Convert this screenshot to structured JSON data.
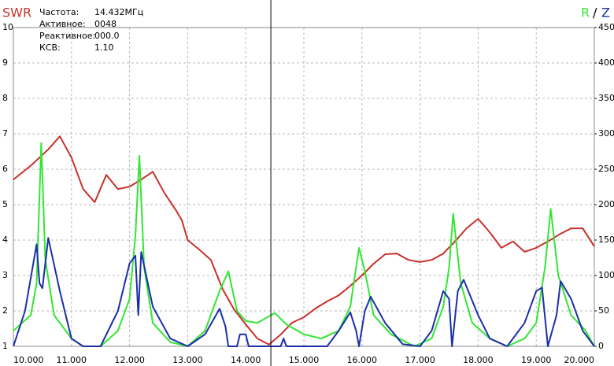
{
  "chart_data": {
    "type": "line",
    "info": [
      {
        "label": "Частота:",
        "value": "14.432МГц"
      },
      {
        "label": "Активное:",
        "value": "0048"
      },
      {
        "label": "Реактивное:",
        "value": "000.0"
      },
      {
        "label": "КСВ:",
        "value": "1.10"
      }
    ],
    "legend_separator": "/",
    "cursor": {
      "value": 14.432,
      "label": "14.432МГц"
    },
    "xlim": [
      10,
      20
    ],
    "xticks": [
      {
        "value": 10,
        "label": "10.000"
      },
      {
        "value": 11,
        "label": "11.000"
      },
      {
        "value": 12,
        "label": "12.000"
      },
      {
        "value": 13,
        "label": "13.000"
      },
      {
        "value": 14,
        "label": "14.000"
      },
      {
        "value": 15,
        "label": "15.000"
      },
      {
        "value": 16,
        "label": "16.000"
      },
      {
        "value": 17,
        "label": "17.000"
      },
      {
        "value": 18,
        "label": "18.000"
      },
      {
        "value": 19,
        "label": "19.000"
      },
      {
        "value": 20,
        "label": "20.000"
      }
    ],
    "ylim": [
      1,
      10
    ],
    "yticks": [
      1,
      2,
      3,
      4,
      5,
      6,
      7,
      8,
      9,
      10
    ],
    "y2lim": [
      0,
      450
    ],
    "y2ticks": [
      0,
      50,
      100,
      150,
      200,
      250,
      300,
      350,
      400,
      450
    ],
    "grid": true,
    "series": [
      {
        "name": "SWR",
        "color": "#c8302a",
        "axis": "y",
        "x": [
          10.0,
          10.3,
          10.6,
          10.8,
          11.0,
          11.2,
          11.4,
          11.6,
          11.8,
          12.0,
          12.2,
          12.4,
          12.6,
          12.8,
          12.9,
          13.0,
          13.2,
          13.4,
          13.6,
          13.8,
          14.0,
          14.2,
          14.4,
          14.6,
          14.8,
          15.0,
          15.2,
          15.4,
          15.6,
          15.8,
          16.0,
          16.2,
          16.4,
          16.6,
          16.8,
          17.0,
          17.2,
          17.4,
          17.6,
          17.8,
          18.0,
          18.2,
          18.4,
          18.6,
          18.8,
          19.0,
          19.2,
          19.4,
          19.6,
          19.8,
          20.0
        ],
        "values": [
          5.71,
          6.1,
          6.56,
          6.93,
          6.33,
          5.44,
          5.07,
          5.84,
          5.44,
          5.51,
          5.71,
          5.93,
          5.33,
          4.84,
          4.56,
          4.0,
          3.73,
          3.44,
          2.62,
          2.04,
          1.62,
          1.22,
          1.05,
          1.33,
          1.67,
          1.82,
          2.07,
          2.27,
          2.44,
          2.71,
          3.0,
          3.33,
          3.6,
          3.62,
          3.44,
          3.38,
          3.44,
          3.62,
          3.96,
          4.33,
          4.6,
          4.22,
          3.78,
          3.96,
          3.67,
          3.78,
          3.96,
          4.16,
          4.33,
          4.33,
          3.82
        ]
      },
      {
        "name": "R",
        "color": "#33e633",
        "axis": "y2",
        "x": [
          10.0,
          10.3,
          10.4,
          10.48,
          10.55,
          10.7,
          11.0,
          11.2,
          11.5,
          11.8,
          12.0,
          12.1,
          12.17,
          12.25,
          12.4,
          12.7,
          13.0,
          13.3,
          13.55,
          13.7,
          13.85,
          14.0,
          14.2,
          14.5,
          14.7,
          15.0,
          15.3,
          15.6,
          15.8,
          15.95,
          16.05,
          16.2,
          16.5,
          16.9,
          17.2,
          17.4,
          17.5,
          17.57,
          17.7,
          17.9,
          18.2,
          18.5,
          18.8,
          19.0,
          19.15,
          19.25,
          19.38,
          19.6,
          19.85,
          20.0
        ],
        "values": [
          22,
          44,
          89,
          287,
          122,
          44,
          11,
          0,
          0,
          22,
          67,
          156,
          269,
          111,
          33,
          6,
          0,
          22,
          78,
          106,
          50,
          36,
          33,
          47,
          31,
          17,
          11,
          22,
          56,
          139,
          106,
          44,
          17,
          0,
          11,
          56,
          111,
          187,
          89,
          33,
          11,
          0,
          11,
          33,
          111,
          194,
          100,
          44,
          22,
          0
        ]
      },
      {
        "name": "Z",
        "color": "#1a2fa8",
        "axis": "y2",
        "x": [
          10.0,
          10.2,
          10.4,
          10.45,
          10.5,
          10.6,
          10.8,
          11.0,
          11.2,
          11.5,
          11.8,
          12.0,
          12.1,
          12.15,
          12.2,
          12.4,
          12.7,
          13.0,
          13.3,
          13.55,
          13.65,
          13.7,
          13.85,
          13.9,
          14.0,
          14.05,
          14.6,
          14.65,
          14.7,
          15.4,
          15.6,
          15.8,
          15.9,
          15.95,
          16.05,
          16.15,
          16.4,
          16.7,
          17.0,
          17.2,
          17.4,
          17.5,
          17.55,
          17.65,
          17.75,
          18.0,
          18.2,
          18.5,
          18.8,
          19.0,
          19.1,
          19.2,
          19.35,
          19.42,
          19.6,
          19.8,
          20.0
        ],
        "values": [
          0,
          50,
          144,
          89,
          82,
          153,
          78,
          11,
          0,
          0,
          50,
          117,
          128,
          44,
          133,
          56,
          11,
          0,
          17,
          53,
          28,
          0,
          0,
          17,
          17,
          0,
          0,
          11,
          0,
          0,
          22,
          48,
          22,
          0,
          50,
          70,
          33,
          3,
          0,
          22,
          78,
          67,
          0,
          78,
          94,
          44,
          11,
          0,
          33,
          78,
          83,
          0,
          44,
          92,
          67,
          22,
          0
        ]
      }
    ]
  }
}
